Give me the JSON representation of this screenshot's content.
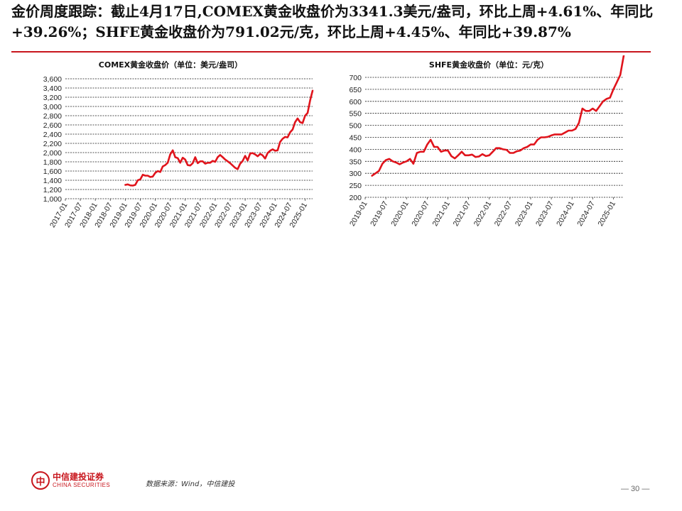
{
  "slide": {
    "title": "金价周度跟踪：截止4月17日,COMEX黄金收盘价为3341.3美元/盎司，环比上周+4.61%、年同比+39.26%；SHFE黄金收盘价为791.02元/克，环比上周+4.45%、年同比+39.87%",
    "accent_color": "#c8161d",
    "source": "数据来源：Wind，中信建投",
    "page_number": "— 30 —",
    "logo": {
      "cn": "中信建投证券",
      "en": "CHINA SECURITIES"
    }
  },
  "chart_data": [
    {
      "type": "line",
      "title": "COMEX黄金收盘价（单位：美元/盎司）",
      "line_color": "#e0141c",
      "grid": true,
      "ylim": [
        1000,
        3600
      ],
      "yticks": [
        "1,000",
        "1,200",
        "1,400",
        "1,600",
        "1,800",
        "2,000",
        "2,200",
        "2,400",
        "2,600",
        "2,800",
        "3,000",
        "3,200",
        "3,400",
        "3,600"
      ],
      "xlim": [
        "2017-01",
        "2025-04"
      ],
      "xticks": [
        "2017-01",
        "2017-07",
        "2018-01",
        "2018-07",
        "2019-01",
        "2019-07",
        "2020-01",
        "2020-07",
        "2021-01",
        "2021-07",
        "2022-01",
        "2022-07",
        "2023-01",
        "2023-07",
        "2024-01",
        "2024-07",
        "2025-01"
      ],
      "series": [
        {
          "x": [
            "2019-01",
            "2019-02",
            "2019-03",
            "2019-04",
            "2019-05",
            "2019-06",
            "2019-07",
            "2019-08",
            "2019-09",
            "2019-10",
            "2019-11",
            "2019-12",
            "2020-01",
            "2020-02",
            "2020-03",
            "2020-04",
            "2020-05",
            "2020-06",
            "2020-07",
            "2020-08",
            "2020-09",
            "2020-10",
            "2020-11",
            "2020-12",
            "2021-01",
            "2021-02",
            "2021-03",
            "2021-04",
            "2021-05",
            "2021-06",
            "2021-07",
            "2021-08",
            "2021-09",
            "2021-10",
            "2021-11",
            "2021-12",
            "2022-01",
            "2022-02",
            "2022-03",
            "2022-04",
            "2022-05",
            "2022-06",
            "2022-07",
            "2022-08",
            "2022-09",
            "2022-10",
            "2022-11",
            "2022-12",
            "2023-01",
            "2023-02",
            "2023-03",
            "2023-04",
            "2023-05",
            "2023-06",
            "2023-07",
            "2023-08",
            "2023-09",
            "2023-10",
            "2023-11",
            "2023-12",
            "2024-01",
            "2024-02",
            "2024-03",
            "2024-04",
            "2024-05",
            "2024-06",
            "2024-07",
            "2024-08",
            "2024-09",
            "2024-10",
            "2024-11",
            "2024-12",
            "2025-01",
            "2025-02",
            "2025-03",
            "2025-04"
          ],
          "values": [
            1300,
            1310,
            1290,
            1285,
            1300,
            1400,
            1420,
            1520,
            1500,
            1500,
            1470,
            1480,
            1560,
            1600,
            1580,
            1700,
            1730,
            1780,
            1960,
            2050,
            1900,
            1880,
            1780,
            1890,
            1850,
            1730,
            1720,
            1770,
            1900,
            1770,
            1810,
            1810,
            1760,
            1780,
            1780,
            1820,
            1800,
            1900,
            1950,
            1900,
            1850,
            1810,
            1770,
            1720,
            1670,
            1640,
            1760,
            1820,
            1930,
            1830,
            1980,
            1990,
            1960,
            1920,
            1970,
            1940,
            1870,
            1990,
            2040,
            2070,
            2040,
            2050,
            2230,
            2300,
            2340,
            2330,
            2440,
            2500,
            2660,
            2740,
            2660,
            2640,
            2800,
            2860,
            3130,
            3341
          ]
        }
      ]
    },
    {
      "type": "line",
      "title": "SHFE黄金收盘价（单位：元/克）",
      "line_color": "#e0141c",
      "grid": true,
      "ylim": [
        200,
        700
      ],
      "yticks": [
        "200",
        "250",
        "300",
        "350",
        "400",
        "450",
        "500",
        "550",
        "600",
        "650",
        "700"
      ],
      "xlim": [
        "2019-01",
        "2025-04"
      ],
      "xticks": [
        "2019-01",
        "2019-07",
        "2020-01",
        "2020-07",
        "2021-01",
        "2021-07",
        "2022-01",
        "2022-07",
        "2023-01",
        "2023-07",
        "2024-01",
        "2024-07",
        "2025-01"
      ],
      "series": [
        {
          "x": [
            "2019-03",
            "2019-04",
            "2019-05",
            "2019-06",
            "2019-07",
            "2019-08",
            "2019-09",
            "2019-10",
            "2019-11",
            "2019-12",
            "2020-01",
            "2020-02",
            "2020-03",
            "2020-04",
            "2020-05",
            "2020-06",
            "2020-07",
            "2020-08",
            "2020-09",
            "2020-10",
            "2020-11",
            "2020-12",
            "2021-01",
            "2021-02",
            "2021-03",
            "2021-04",
            "2021-05",
            "2021-06",
            "2021-07",
            "2021-08",
            "2021-09",
            "2021-10",
            "2021-11",
            "2021-12",
            "2022-01",
            "2022-02",
            "2022-03",
            "2022-04",
            "2022-05",
            "2022-06",
            "2022-07",
            "2022-08",
            "2022-09",
            "2022-10",
            "2022-11",
            "2022-12",
            "2023-01",
            "2023-02",
            "2023-03",
            "2023-04",
            "2023-05",
            "2023-06",
            "2023-07",
            "2023-08",
            "2023-09",
            "2023-10",
            "2023-11",
            "2023-12",
            "2024-01",
            "2024-02",
            "2024-03",
            "2024-04",
            "2024-05",
            "2024-06",
            "2024-07",
            "2024-08",
            "2024-09",
            "2024-10",
            "2024-11",
            "2024-12",
            "2025-01",
            "2025-02",
            "2025-03",
            "2025-04"
          ],
          "values": [
            290,
            300,
            310,
            340,
            355,
            360,
            350,
            345,
            338,
            345,
            350,
            360,
            340,
            385,
            390,
            390,
            420,
            440,
            410,
            410,
            390,
            395,
            395,
            372,
            362,
            375,
            390,
            375,
            375,
            378,
            368,
            370,
            380,
            372,
            375,
            390,
            405,
            405,
            400,
            398,
            385,
            385,
            392,
            395,
            405,
            410,
            420,
            420,
            440,
            450,
            450,
            452,
            458,
            462,
            462,
            462,
            470,
            478,
            478,
            485,
            510,
            570,
            560,
            560,
            570,
            560,
            580,
            600,
            610,
            615,
            650,
            680,
            710,
            791
          ]
        }
      ]
    }
  ]
}
